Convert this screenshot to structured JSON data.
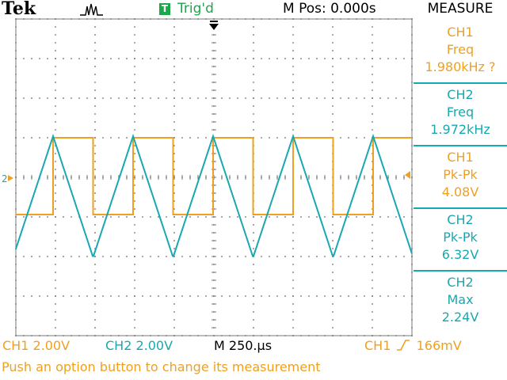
{
  "brand": "Tek",
  "acquisition_icon": "pulse-icon",
  "trigger": {
    "badge": "T",
    "status": "Trig'd"
  },
  "position": "M Pos: 0.000s",
  "measure": {
    "title": "MEASURE",
    "panels": [
      {
        "channel": "CH1",
        "type": "Freq",
        "value": "1.980kHz ?"
      },
      {
        "channel": "CH2",
        "type": "Freq",
        "value": "1.972kHz"
      },
      {
        "channel": "CH1",
        "type": "Pk-Pk",
        "value": "4.08V"
      },
      {
        "channel": "CH2",
        "type": "Pk-Pk",
        "value": "6.32V"
      },
      {
        "channel": "CH2",
        "type": "Max",
        "value": "2.24V"
      }
    ]
  },
  "status_bar": {
    "ch1_scale": "CH1  2.00V",
    "ch2_scale": "CH2  2.00V",
    "timebase": "M 250.µs",
    "trigger_source": "CH1",
    "trigger_level": "166mV"
  },
  "message": "Push an option button to change its measurement",
  "markers": {
    "ch2_ground": "2"
  },
  "colors": {
    "ch1": "#f0a020",
    "ch2": "#1aa8b0",
    "trigger_green": "#1aa84a",
    "grid": "#7a7a7a"
  }
}
